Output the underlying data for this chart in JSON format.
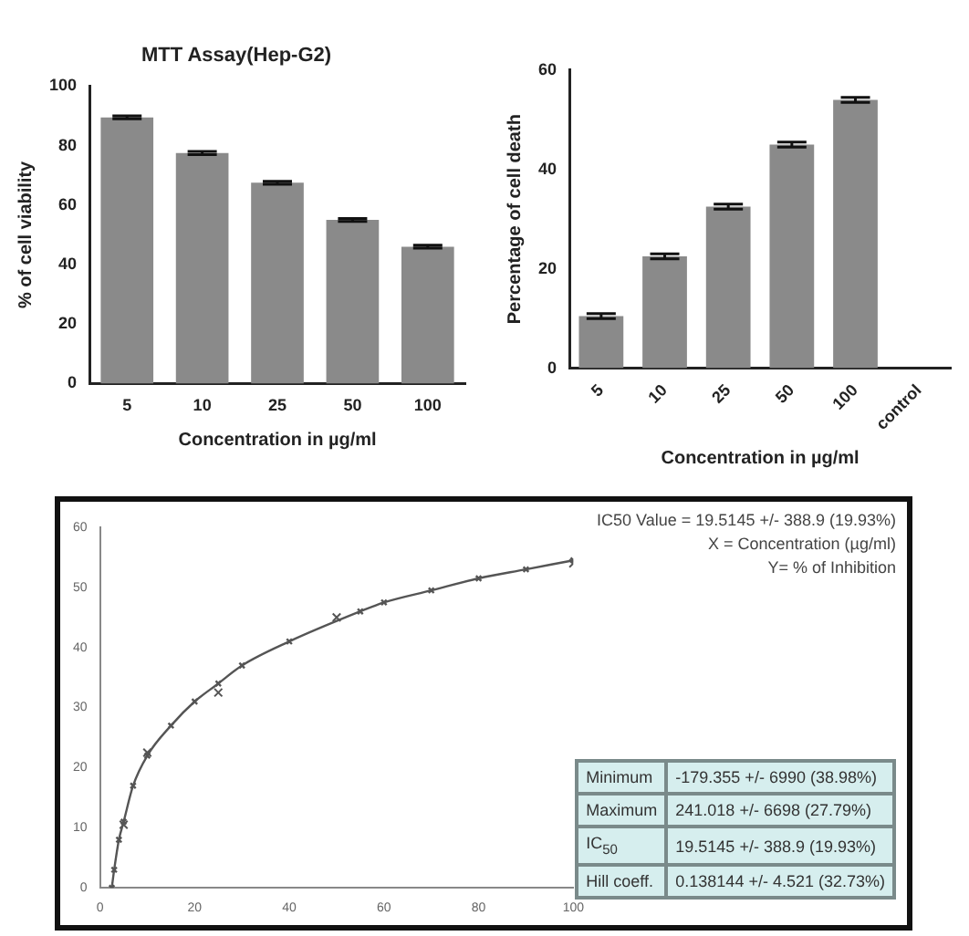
{
  "chart_data": [
    {
      "type": "bar",
      "title": "MTT Assay(Hep-G2)",
      "xlabel": "Concentration in µg/ml",
      "ylabel": "% of cell viability",
      "categories": [
        "5",
        "10",
        "25",
        "50",
        "100"
      ],
      "values": [
        89.5,
        77.5,
        67.5,
        55,
        46
      ],
      "errors": [
        0.5,
        0.5,
        0.5,
        0.5,
        0.5
      ],
      "color": "#8a8a8a",
      "ylim": [
        0,
        100
      ],
      "yticks": [
        0,
        20,
        40,
        60,
        80,
        100
      ]
    },
    {
      "type": "bar",
      "xlabel": "Concentration in µg/ml",
      "ylabel": "Percentage of cell death",
      "categories": [
        "5",
        "10",
        "25",
        "50",
        "100",
        "control"
      ],
      "values": [
        10.5,
        22.5,
        32.5,
        45,
        54,
        null
      ],
      "errors": [
        0.5,
        0.5,
        0.5,
        0.5,
        0.5,
        null
      ],
      "color": "#8a8a8a",
      "ylim": [
        0,
        60
      ],
      "yticks": [
        0,
        20,
        40,
        60
      ]
    },
    {
      "type": "scatter",
      "xlim": [
        0,
        100
      ],
      "xticks": [
        0,
        20,
        40,
        60,
        80,
        100
      ],
      "ylim": [
        0,
        60
      ],
      "yticks": [
        0,
        10,
        20,
        30,
        40,
        50,
        60
      ],
      "marker": "cross",
      "series": [
        {
          "type": "scatter",
          "color": "#555555",
          "x": [
            5,
            10,
            25,
            50,
            100
          ],
          "values": [
            10.5,
            22.5,
            32.5,
            45,
            54
          ]
        },
        {
          "type": "line",
          "color": "#555555",
          "x": [
            2.5,
            3,
            4,
            5,
            7,
            10,
            15,
            20,
            25,
            30,
            40,
            55,
            60,
            70,
            80,
            90,
            100
          ],
          "values": [
            0,
            3,
            8,
            11,
            17,
            22,
            27,
            31,
            34,
            37,
            41,
            46,
            47.5,
            49.5,
            51.5,
            53,
            54.5
          ]
        }
      ],
      "annotations": [
        "IC50 Value = 19.5145 +/- 388.9 (19.93%)",
        "X = Concentration (µg/ml)",
        "Y= % of Inhibition",
        "Minimum",
        "-179.355 +/- 6990 (38.98%)",
        "Maximum",
        "241.018 +/- 6698 (27.79%)",
        "IC$_{50}$",
        "19.5145 +/- 388.9 (19.93%)",
        "Hill coeff.",
        "0.138144 +/- 4.521 (32.73%)"
      ]
    }
  ]
}
